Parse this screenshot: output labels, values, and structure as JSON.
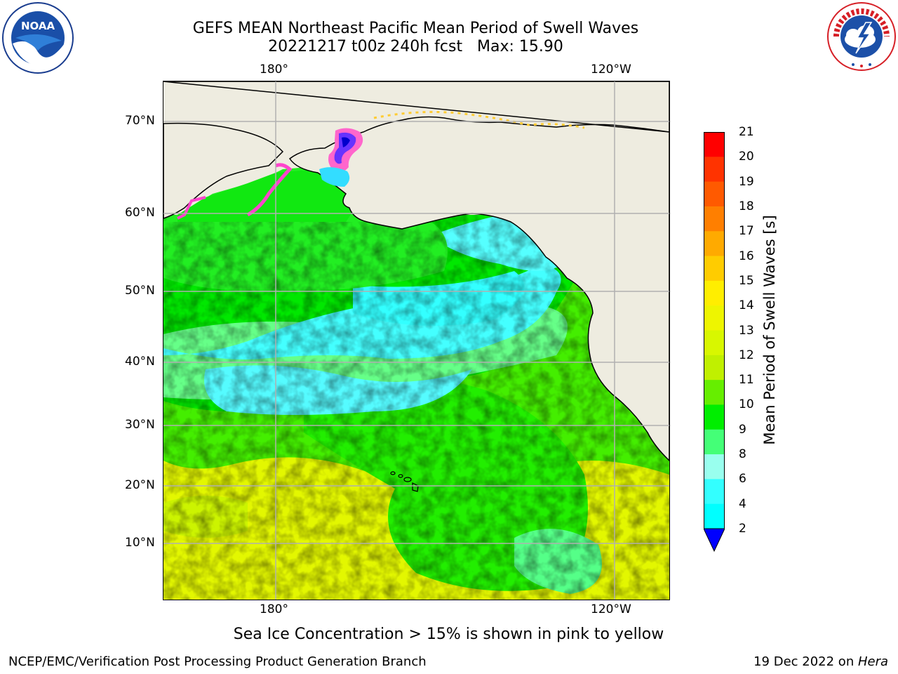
{
  "title": {
    "line1": "GEFS MEAN Northeast Pacific Mean Period of Swell Waves",
    "line2": "20221217 t00z 240h fcst   Max: 15.90"
  },
  "logos": {
    "left": "NOAA",
    "right": "NATIONAL WEATHER SERVICE"
  },
  "map": {
    "lon_labels_top": [
      "180°",
      "120°W"
    ],
    "lon_labels_bottom": [
      "180°",
      "120°W"
    ],
    "lat_labels": [
      "70°N",
      "60°N",
      "50°N",
      "40°N",
      "30°N",
      "20°N",
      "10°N"
    ],
    "land_color": "#eeece0",
    "grid_color": "#b0b0b0"
  },
  "colorbar": {
    "label": "Mean Period of Swell Waves [s]",
    "ticks": [
      "21",
      "20",
      "19",
      "18",
      "17",
      "16",
      "15",
      "14",
      "13",
      "12",
      "11",
      "10",
      "9",
      "8",
      "6",
      "4",
      "2"
    ],
    "colors": [
      "#ff0000",
      "#ff3300",
      "#ff5a00",
      "#ff7f00",
      "#ffaa00",
      "#ffcc00",
      "#ffee00",
      "#eef500",
      "#d8f700",
      "#c0f000",
      "#66ee00",
      "#00ee00",
      "#44ff77",
      "#99ffee",
      "#33ffff",
      "#00ffff",
      "#0088ff"
    ],
    "extend_color": "#0000ff"
  },
  "note": "Sea Ice Concentration > 15% is shown in pink to yellow",
  "footer": {
    "left": "NCEP/EMC/Verification Post Processing Product Generation Branch",
    "right_date": "19 Dec 2022 on ",
    "right_host": "Hera"
  }
}
